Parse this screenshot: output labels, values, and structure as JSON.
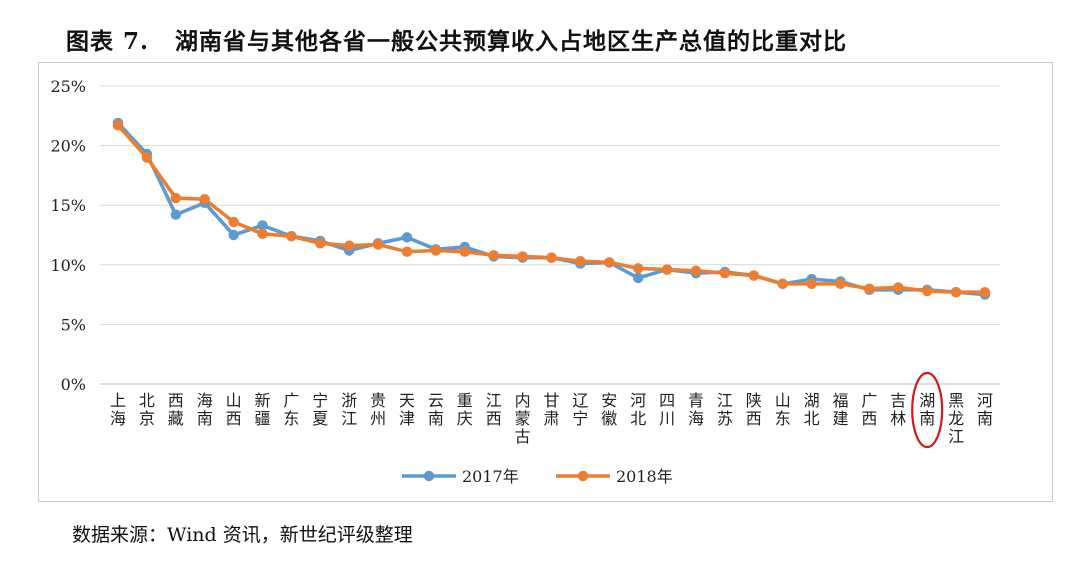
{
  "figure": {
    "label": "图表 7.",
    "title": "湖南省与其他各省一般公共预算收入占地区生产总值的比重对比"
  },
  "source_note": "数据来源：Wind 资讯，新世纪评级整理",
  "colors": {
    "s2017": "#5B9BD5",
    "s2018": "#ED7D31",
    "highlight": "#D11A1A",
    "grid": "#d9d9d9",
    "axis": "#bfbfbf"
  },
  "chart_data": {
    "type": "line",
    "categories": [
      "上海",
      "北京",
      "西藏",
      "海南",
      "山西",
      "新疆",
      "广东",
      "宁夏",
      "浙江",
      "贵州",
      "天津",
      "云南",
      "重庆",
      "江西",
      "内蒙古",
      "甘肃",
      "辽宁",
      "安徽",
      "河北",
      "四川",
      "青海",
      "江苏",
      "陕西",
      "山东",
      "湖北",
      "福建",
      "广西",
      "吉林",
      "湖南",
      "黑龙江",
      "河南"
    ],
    "y_ticks": [
      "25%",
      "20%",
      "15%",
      "10%",
      "5%",
      "0%"
    ],
    "ylim": [
      0,
      25
    ],
    "grid": true,
    "legend_position": "bottom",
    "highlight_category": "湖南",
    "series": [
      {
        "name": "2017年",
        "values": [
          21.9,
          19.3,
          14.2,
          15.2,
          12.5,
          13.3,
          12.4,
          12.0,
          11.2,
          11.8,
          12.3,
          11.3,
          11.5,
          10.7,
          10.6,
          10.6,
          10.1,
          10.2,
          8.9,
          9.6,
          9.3,
          9.4,
          9.1,
          8.4,
          8.8,
          8.6,
          7.9,
          7.9,
          7.9,
          7.7,
          7.5
        ]
      },
      {
        "name": "2018年",
        "values": [
          21.7,
          19.0,
          15.6,
          15.5,
          13.6,
          12.6,
          12.4,
          11.8,
          11.6,
          11.7,
          11.1,
          11.2,
          11.1,
          10.8,
          10.7,
          10.6,
          10.3,
          10.2,
          9.7,
          9.6,
          9.5,
          9.3,
          9.1,
          8.4,
          8.4,
          8.4,
          8.0,
          8.1,
          7.8,
          7.7,
          7.7
        ]
      }
    ]
  }
}
